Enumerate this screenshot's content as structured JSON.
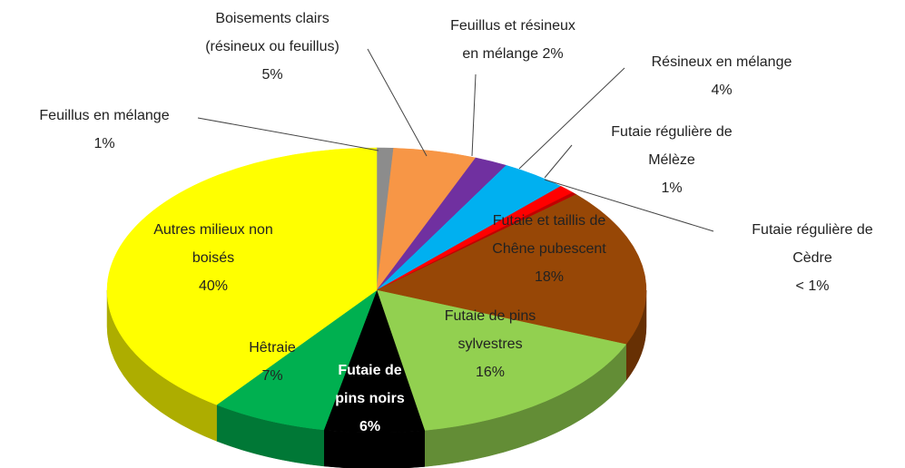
{
  "chart_data": {
    "type": "pie",
    "categories": [
      "Feuillus en mélange",
      "Boisements clairs (résineux ou feuillus)",
      "Feuillus et résineux en mélange",
      "Résineux en mélange",
      "Futaie régulière de Mélèze",
      "Futaie régulière de Cèdre",
      "Futaie et taillis de Chêne pubescent",
      "Futaie de pins sylvestres",
      "Futaie de pins noirs",
      "Hêtraie",
      "Autres milieux non boisés"
    ],
    "values": [
      1,
      5,
      2,
      4,
      1,
      0.3,
      18,
      16,
      6,
      7,
      40
    ],
    "value_labels": [
      "1%",
      "5%",
      "2%",
      "4%",
      "1%",
      "< 1%",
      "18%",
      "16%",
      "6%",
      "7%",
      "40%"
    ],
    "colors": [
      "#8c8c8c",
      "#f79646",
      "#7030a0",
      "#00b0f0",
      "#ff0000",
      "#c00000",
      "#974706",
      "#92d050",
      "#000000",
      "#00b050",
      "#ffff00"
    ]
  }
}
